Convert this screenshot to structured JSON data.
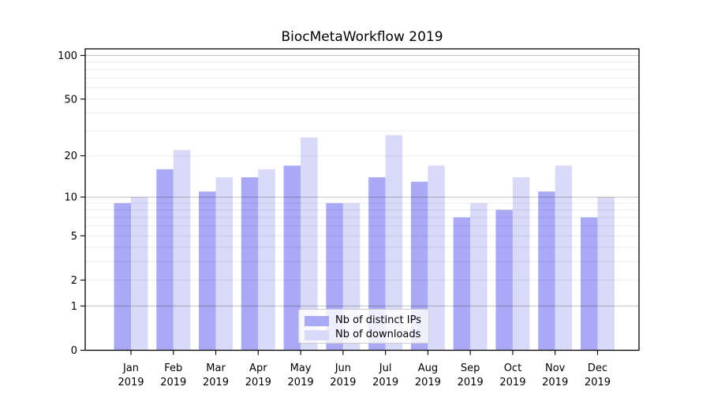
{
  "chart_data": {
    "type": "bar",
    "title": "BiocMetaWorkflow 2019",
    "categories": [
      "Jan",
      "Feb",
      "Mar",
      "Apr",
      "May",
      "Jun",
      "Jul",
      "Aug",
      "Sep",
      "Oct",
      "Nov",
      "Dec"
    ],
    "x_tick_second_line": "2019",
    "series": [
      {
        "name": "Nb of distinct IPs",
        "color": "#a9a9f6",
        "values": [
          9,
          16,
          11,
          14,
          17,
          9,
          14,
          13,
          7,
          8,
          11,
          7
        ]
      },
      {
        "name": "Nb of downloads",
        "color": "#d9d9f8",
        "values": [
          10,
          22,
          14,
          16,
          27,
          9,
          28,
          17,
          9,
          14,
          17,
          10
        ]
      }
    ],
    "y_scale": "log1p",
    "ylim": [
      0,
      111
    ],
    "y_ticks": [
      100,
      50,
      20,
      10,
      5,
      2,
      1,
      0
    ],
    "y_major_gridlines": [
      1,
      10,
      100
    ],
    "y_minor_gridlines": [
      2,
      3,
      4,
      5,
      6,
      7,
      8,
      9,
      20,
      30,
      40,
      50,
      60,
      70,
      80,
      90
    ],
    "grid": "on",
    "legend_position": "lower center",
    "colors": {
      "axis": "#000000",
      "major_grid": "rgba(0,0,0,0.25)",
      "minor_grid": "rgba(0,0,0,0.08)"
    }
  }
}
